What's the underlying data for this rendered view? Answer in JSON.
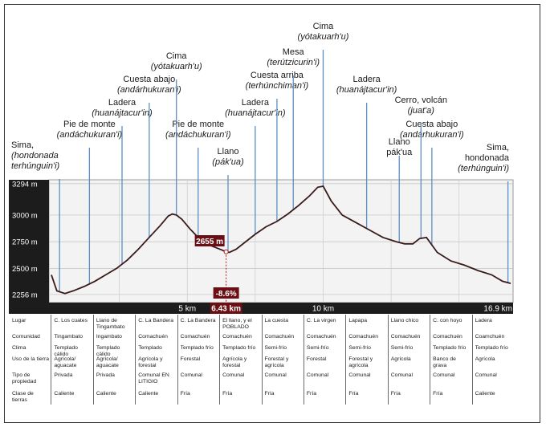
{
  "chart_data": {
    "type": "line",
    "title": "",
    "xlabel": "",
    "ylabel": "",
    "x_unit": "km",
    "y_unit": "m",
    "xlim": [
      0,
      16.9
    ],
    "ylim": [
      2180,
      3330
    ],
    "y_ticks": [
      {
        "value": 3294,
        "label": "3294 m"
      },
      {
        "value": 3000,
        "label": "3000 m"
      },
      {
        "value": 2750,
        "label": "2750 m"
      },
      {
        "value": 2500,
        "label": "2500 m"
      },
      {
        "value": 2256,
        "label": "2256 m"
      }
    ],
    "x_ticks": [
      {
        "value": 5,
        "label": "5 km"
      },
      {
        "value": 10,
        "label": "10 km"
      },
      {
        "value": 16.9,
        "label": "16.9 km"
      }
    ],
    "cursor": {
      "x": 6.43,
      "x_label": "6.43 km",
      "elevation_label": "2655 m",
      "grade_label": "-8.6%"
    },
    "series": [
      {
        "x": [
          0.0,
          0.2,
          0.5,
          0.8,
          1.2,
          1.6,
          2.0,
          2.4,
          2.8,
          3.2,
          3.6,
          4.0,
          4.3,
          4.45,
          4.6,
          4.8,
          5.1,
          5.4,
          5.7,
          6.0,
          6.3,
          6.43,
          6.55,
          6.8,
          7.1,
          7.5,
          7.9,
          8.3,
          8.7,
          9.1,
          9.5,
          9.8,
          10.0,
          10.3,
          10.7,
          11.2,
          11.7,
          12.2,
          12.7,
          13.0,
          13.3,
          13.55,
          13.8,
          14.2,
          14.7,
          15.2,
          15.7,
          16.2,
          16.6,
          16.9
        ],
        "y": [
          2440,
          2290,
          2265,
          2290,
          2330,
          2380,
          2440,
          2500,
          2580,
          2680,
          2790,
          2900,
          2990,
          3010,
          3000,
          2960,
          2870,
          2790,
          2730,
          2700,
          2670,
          2655,
          2650,
          2680,
          2740,
          2820,
          2890,
          2940,
          3010,
          3090,
          3180,
          3260,
          3270,
          3130,
          3000,
          2930,
          2860,
          2790,
          2750,
          2730,
          2730,
          2780,
          2790,
          2650,
          2570,
          2530,
          2480,
          2440,
          2380,
          2360
        ]
      }
    ],
    "grid": true,
    "legend": "none"
  },
  "landmarks": [
    {
      "name": "Sima,",
      "name2": "(hondonada",
      "purepecha": "terhúnguin'i)",
      "x": 0.3
    },
    {
      "name": "Pie de monte",
      "purepecha": "(andáchukuran'i)",
      "x": 1.4
    },
    {
      "name": "Ladera",
      "purepecha": "(huanájtacur'in)",
      "x": 2.6
    },
    {
      "name": "Cuesta abajo",
      "purepecha": "(andárhukuran'i)",
      "x": 3.6
    },
    {
      "name": "Cima",
      "purepecha": "(yótakuarh'u)",
      "x": 4.6
    },
    {
      "name": "Pie de monte",
      "purepecha": "(andáchukuran'i)",
      "x": 5.4
    },
    {
      "name": "Llano",
      "purepecha": "(pák'ua)",
      "x": 6.5
    },
    {
      "name": "Ladera",
      "purepecha": "(huanájtacur'in)",
      "x": 7.5
    },
    {
      "name": "Cuesta arriba",
      "purepecha": "(terhúnchiman'i)",
      "x": 8.3
    },
    {
      "name": "Mesa",
      "purepecha": "(terútzicurin'i)",
      "x": 8.9
    },
    {
      "name": "Cima",
      "purepecha": "(yótakuarh'u)",
      "x": 10.0
    },
    {
      "name": "Ladera",
      "purepecha": "(huanájtacur'in)",
      "x": 11.6
    },
    {
      "name": "Llano",
      "name2": "pák'ua",
      "x": 12.8
    },
    {
      "name": "Cerro, volcán",
      "purepecha": "(juat'a)",
      "x": 13.6
    },
    {
      "name": "Cuesta abajo",
      "purepecha": "(andárhukuran'i)",
      "x": 14.0
    },
    {
      "name": "Sima,",
      "name2": "hondonada",
      "purepecha": "(terhúnguin'i)",
      "x": 16.8
    }
  ],
  "table": {
    "columns": [
      [
        "Lugar",
        "Comunidad",
        "Clima",
        "Uso de la tierra",
        "Tipo de propiedad",
        "Clase de tierras"
      ],
      [
        "C. Los cuates",
        "Tingambato",
        "Templado cálido",
        "Agrícola/ aguacate",
        "Privada",
        "Caliente"
      ],
      [
        "Llano de Tingambato",
        "Ingambato",
        "Templado cálido",
        "Agrícola/ aguacate",
        "Privada",
        "Caliente"
      ],
      [
        "C. La Bandera",
        "Comachuén",
        "Templado",
        "Agrícola y forestal",
        "Comunal EN LITIGIO",
        "Caliente"
      ],
      [
        "C. La Bandera",
        "Comachuén",
        "Templado frío",
        "Forestal",
        "Comunal",
        "Fría"
      ],
      [
        "El llano, y el POBLADO",
        "Comachuén",
        "Templado frío",
        "Agrícola y forestal",
        "Comunal",
        "Fría"
      ],
      [
        "La cuesta",
        "Comachuén",
        "Semi-frío",
        "Forestal y agrícola",
        "Comunal",
        "Fría"
      ],
      [
        "C. La virgen",
        "Comachuén",
        "Semi-frío",
        "Forestal",
        "Comunal",
        "Fría"
      ],
      [
        "Lapapa",
        "Comachuén",
        "Semi-frío",
        "Forestal y agrícola",
        "Comunal",
        "Fría"
      ],
      [
        "Llano chico",
        "Comachuén",
        "Semi-frío",
        "Agrícola",
        "Comunal",
        "Fría"
      ],
      [
        "C. con hoyo",
        "Comachuén",
        "Templado frío",
        "Banco de grava",
        "Comunal",
        "Fría"
      ],
      [
        "Ladera",
        "Coamchuén",
        "Templado frío",
        "Agrícola",
        "Comunal",
        "Caliente"
      ]
    ]
  },
  "colors": {
    "plot_bg": "#f3f3f3",
    "line": "#3a1a1a",
    "marker": "#5b8fc7",
    "label_box": "#6b0f14",
    "axis_dark": "#1c1c1c"
  }
}
